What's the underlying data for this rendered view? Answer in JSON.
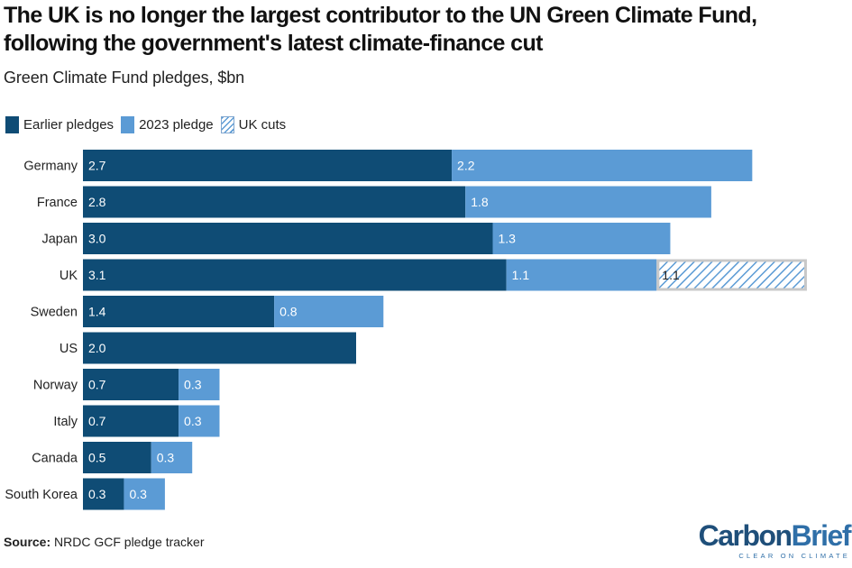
{
  "title": "The UK is no longer the largest contributor to the UN Green Climate Fund, following the government's latest climate-finance cut",
  "subtitle": "Green Climate Fund pledges, $bn",
  "legend": {
    "earlier": "Earlier pledges",
    "pledge2023": "2023 pledge",
    "cuts": "UK cuts"
  },
  "colors": {
    "earlier": "#0f4c75",
    "pledge2023": "#5b9bd5",
    "cuts_hatch": "#5b9bd5",
    "cuts_border": "#c8c8c8"
  },
  "source": {
    "label": "Source:",
    "text": "NRDC GCF pledge tracker"
  },
  "brand": {
    "part1": "Carbon",
    "part2": "Brief",
    "tagline": "CLEAR ON CLIMATE"
  },
  "chart_data": {
    "type": "bar",
    "orientation": "horizontal",
    "stacked": true,
    "categories": [
      "Germany",
      "France",
      "Japan",
      "UK",
      "Sweden",
      "US",
      "Norway",
      "Italy",
      "Canada",
      "South Korea"
    ],
    "series": [
      {
        "name": "Earlier pledges",
        "values": [
          2.7,
          2.8,
          3.0,
          3.1,
          1.4,
          2.0,
          0.7,
          0.7,
          0.5,
          0.3
        ],
        "labels": [
          "2.7",
          "2.8",
          "3.0",
          "3.1",
          "1.4",
          "2.0",
          "0.7",
          "0.7",
          "0.5",
          "0.3"
        ]
      },
      {
        "name": "2023 pledge",
        "values": [
          2.2,
          1.8,
          1.3,
          1.1,
          0.8,
          0,
          0.3,
          0.3,
          0.3,
          0.3
        ],
        "labels": [
          "2.2",
          "1.8",
          "1.3",
          "1.1",
          "0.8",
          "",
          "0.3",
          "0.3",
          "0.3",
          "0.3"
        ]
      },
      {
        "name": "UK cuts",
        "values": [
          0,
          0,
          0,
          1.1,
          0,
          0,
          0,
          0,
          0,
          0
        ],
        "labels": [
          "",
          "",
          "",
          "1.1",
          "",
          "",
          "",
          "",
          "",
          ""
        ]
      }
    ],
    "title": "The UK is no longer the largest contributor to the UN Green Climate Fund, following the government's latest climate-finance cut",
    "subtitle": "Green Climate Fund pledges, $bn",
    "xlabel": "",
    "ylabel": "",
    "legend_position": "top-left",
    "grid": false
  }
}
